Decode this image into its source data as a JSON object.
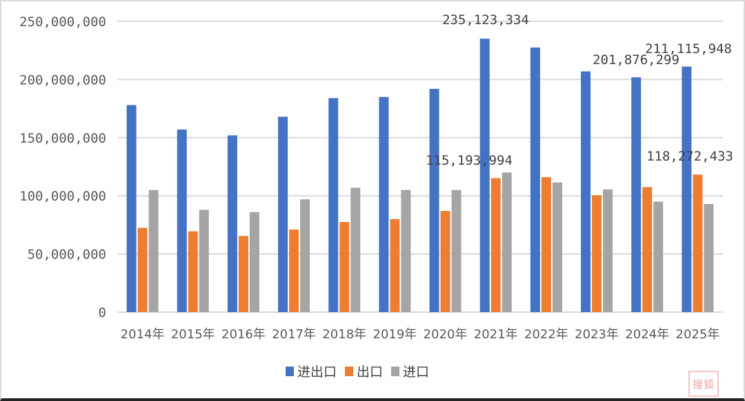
{
  "chart_data": {
    "type": "bar",
    "title": "",
    "xlabel": "",
    "ylabel": "",
    "ylim": [
      0,
      250000000
    ],
    "yticks": [
      0,
      50000000,
      100000000,
      150000000,
      200000000,
      250000000
    ],
    "ytick_labels": [
      "0",
      "50,000,000",
      "100,000,000",
      "150,000,000",
      "200,000,000",
      "250,000,000"
    ],
    "grid": true,
    "legend_position": "bottom",
    "categories": [
      "2014年",
      "2015年",
      "2016年",
      "2017年",
      "2018年",
      "2019年",
      "2020年",
      "2021年",
      "2022年",
      "2023年",
      "2024年",
      "2025年"
    ],
    "series": [
      {
        "name": "进出口",
        "color": "#4472c4",
        "values": [
          178000000,
          157000000,
          152000000,
          168000000,
          184000000,
          185000000,
          192000000,
          235123334,
          227500000,
          207000000,
          201876299,
          211115948
        ]
      },
      {
        "name": "出口",
        "color": "#ed7d31",
        "values": [
          72500000,
          69500000,
          65500000,
          71000000,
          77500000,
          80000000,
          87000000,
          115193994,
          116000000,
          100500000,
          107500000,
          118272433
        ]
      },
      {
        "name": "进口",
        "color": "#a5a5a5",
        "values": [
          105000000,
          88000000,
          86000000,
          97000000,
          107000000,
          105000000,
          105000000,
          120000000,
          111500000,
          105500000,
          95000000,
          93000000
        ]
      }
    ],
    "annotations": [
      {
        "text": "235,123,334",
        "category": "2021年",
        "series": "进出口"
      },
      {
        "text": "115,193,994",
        "category": "2021年",
        "series": "出口"
      },
      {
        "text": "201,876,299",
        "category": "2024年",
        "series": "进出口"
      },
      {
        "text": "211,115,948",
        "category": "2025年",
        "series": "进出口"
      },
      {
        "text": "118,272,433",
        "category": "2025年",
        "series": "出口"
      }
    ]
  },
  "legend": {
    "items": [
      {
        "label": "进出口",
        "color": "#4472c4"
      },
      {
        "label": "出口",
        "color": "#ed7d31"
      },
      {
        "label": "进口",
        "color": "#a5a5a5"
      }
    ]
  },
  "watermark": {
    "text": "搜狐"
  }
}
